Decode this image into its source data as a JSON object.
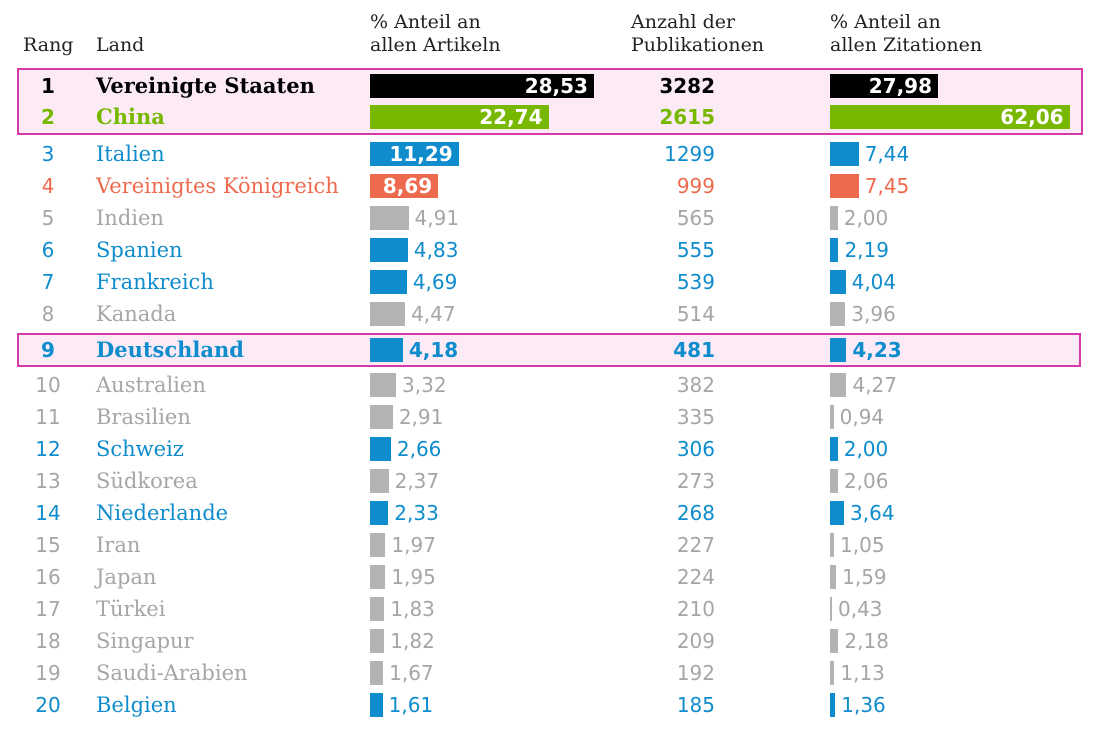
{
  "headers": {
    "rank": "Rang",
    "land": "Land",
    "articles_line1": "% Anteil an",
    "articles_line2": "allen Artikeln",
    "pubs_line1": "Anzahl der",
    "pubs_line2": "Publikationen",
    "citations_line1": "% Anteil an",
    "citations_line2": "allen Zitationen"
  },
  "colors": {
    "us": "#000000",
    "china": "#78b800",
    "blue": "#0f8ccc",
    "uk": "#ee6a4e",
    "gray": "#b3b3b3",
    "gray_text": "#a6a6a6",
    "highlight_border": "#d63aa9",
    "highlight_bg": "#fcebf7"
  },
  "chart_data": {
    "type": "table",
    "title": "",
    "columns": [
      "Rang",
      "Land",
      "% Anteil an allen Artikeln",
      "Anzahl der Publikationen",
      "% Anteil an allen Zitationen"
    ],
    "rows": [
      {
        "rank": "1",
        "country": "Vereinigte Staaten",
        "articles_pct": 28.53,
        "articles_label": "28,53",
        "pubs": "3282",
        "citations_pct": 27.98,
        "citations_label": "27,98",
        "style": "us",
        "bold": true
      },
      {
        "rank": "2",
        "country": "China",
        "articles_pct": 22.74,
        "articles_label": "22,74",
        "pubs": "2615",
        "citations_pct": 62.06,
        "citations_label": "62,06",
        "style": "china",
        "bold": true
      },
      {
        "rank": "3",
        "country": "Italien",
        "articles_pct": 11.29,
        "articles_label": "11,29",
        "pubs": "1299",
        "citations_pct": 7.44,
        "citations_label": "7,44",
        "style": "blue",
        "bold": false
      },
      {
        "rank": "4",
        "country": "Vereinigtes Königreich",
        "articles_pct": 8.69,
        "articles_label": "8,69",
        "pubs": "999",
        "citations_pct": 7.45,
        "citations_label": "7,45",
        "style": "uk",
        "bold": false
      },
      {
        "rank": "5",
        "country": "Indien",
        "articles_pct": 4.91,
        "articles_label": "4,91",
        "pubs": "565",
        "citations_pct": 2.0,
        "citations_label": "2,00",
        "style": "gray",
        "bold": false
      },
      {
        "rank": "6",
        "country": "Spanien",
        "articles_pct": 4.83,
        "articles_label": "4,83",
        "pubs": "555",
        "citations_pct": 2.19,
        "citations_label": "2,19",
        "style": "blue",
        "bold": false
      },
      {
        "rank": "7",
        "country": "Frankreich",
        "articles_pct": 4.69,
        "articles_label": "4,69",
        "pubs": "539",
        "citations_pct": 4.04,
        "citations_label": "4,04",
        "style": "blue",
        "bold": false
      },
      {
        "rank": "8",
        "country": "Kanada",
        "articles_pct": 4.47,
        "articles_label": "4,47",
        "pubs": "514",
        "citations_pct": 3.96,
        "citations_label": "3,96",
        "style": "gray",
        "bold": false
      },
      {
        "rank": "9",
        "country": "Deutschland",
        "articles_pct": 4.18,
        "articles_label": "4,18",
        "pubs": "481",
        "citations_pct": 4.23,
        "citations_label": "4,23",
        "style": "blue",
        "bold": true
      },
      {
        "rank": "10",
        "country": "Australien",
        "articles_pct": 3.32,
        "articles_label": "3,32",
        "pubs": "382",
        "citations_pct": 4.27,
        "citations_label": "4,27",
        "style": "gray",
        "bold": false
      },
      {
        "rank": "11",
        "country": "Brasilien",
        "articles_pct": 2.91,
        "articles_label": "2,91",
        "pubs": "335",
        "citations_pct": 0.94,
        "citations_label": "0,94",
        "style": "gray",
        "bold": false
      },
      {
        "rank": "12",
        "country": "Schweiz",
        "articles_pct": 2.66,
        "articles_label": "2,66",
        "pubs": "306",
        "citations_pct": 2.0,
        "citations_label": "2,00",
        "style": "blue",
        "bold": false
      },
      {
        "rank": "13",
        "country": "Südkorea",
        "articles_pct": 2.37,
        "articles_label": "2,37",
        "pubs": "273",
        "citations_pct": 2.06,
        "citations_label": "2,06",
        "style": "gray",
        "bold": false
      },
      {
        "rank": "14",
        "country": "Niederlande",
        "articles_pct": 2.33,
        "articles_label": "2,33",
        "pubs": "268",
        "citations_pct": 3.64,
        "citations_label": "3,64",
        "style": "blue",
        "bold": false
      },
      {
        "rank": "15",
        "country": "Iran",
        "articles_pct": 1.97,
        "articles_label": "1,97",
        "pubs": "227",
        "citations_pct": 1.05,
        "citations_label": "1,05",
        "style": "gray",
        "bold": false
      },
      {
        "rank": "16",
        "country": "Japan",
        "articles_pct": 1.95,
        "articles_label": "1,95",
        "pubs": "224",
        "citations_pct": 1.59,
        "citations_label": "1,59",
        "style": "gray",
        "bold": false
      },
      {
        "rank": "17",
        "country": "Türkei",
        "articles_pct": 1.83,
        "articles_label": "1,83",
        "pubs": "210",
        "citations_pct": 0.43,
        "citations_label": "0,43",
        "style": "gray",
        "bold": false
      },
      {
        "rank": "18",
        "country": "Singapur",
        "articles_pct": 1.82,
        "articles_label": "1,82",
        "pubs": "209",
        "citations_pct": 2.18,
        "citations_label": "2,18",
        "style": "gray",
        "bold": false
      },
      {
        "rank": "19",
        "country": "Saudi-Arabien",
        "articles_pct": 1.67,
        "articles_label": "1,67",
        "pubs": "192",
        "citations_pct": 1.13,
        "citations_label": "1,13",
        "style": "gray",
        "bold": false
      },
      {
        "rank": "20",
        "country": "Belgien",
        "articles_pct": 1.61,
        "articles_label": "1,61",
        "pubs": "185",
        "citations_pct": 1.36,
        "citations_label": "1,36",
        "style": "blue",
        "bold": false
      }
    ],
    "highlighted_ranks": [
      "1",
      "2",
      "9"
    ]
  }
}
